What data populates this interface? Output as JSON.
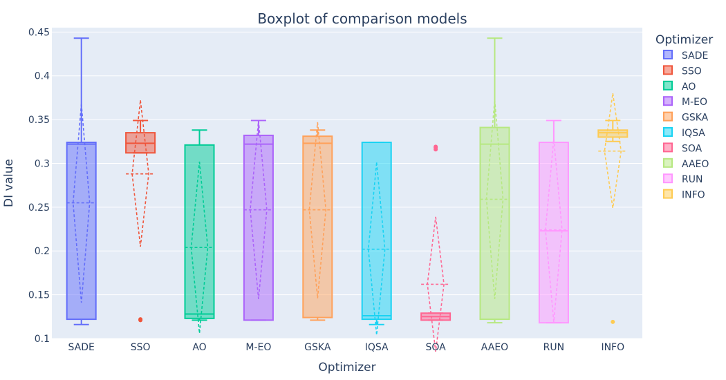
{
  "chart_data": {
    "type": "box",
    "title": "Boxplot of comparison models",
    "xlabel": "Optimizer",
    "ylabel": "DI value",
    "ylim": [
      0.1,
      0.455
    ],
    "yticks": [
      0.1,
      0.15,
      0.2,
      0.25,
      0.3,
      0.35,
      0.4,
      0.45
    ],
    "ytick_labels": [
      "0.1",
      "0.15",
      "0.2",
      "0.25",
      "0.3",
      "0.35",
      "0.4",
      "0.45"
    ],
    "grid": true,
    "legend": {
      "title": "Optimizer",
      "placement": "right"
    },
    "colors": {
      "plot_bg": "#e5ecf6",
      "grid": "#ffffff",
      "text": "#2a3f5f"
    },
    "series": [
      {
        "name": "SADE",
        "color": "#636efa",
        "q1": 0.122,
        "median": 0.322,
        "q3": 0.324,
        "lower_fence": 0.116,
        "upper_fence": 0.443,
        "mean": 0.255,
        "sd_low": 0.141,
        "sd_high": 0.368,
        "outliers": []
      },
      {
        "name": "SSO",
        "color": "#ef553b",
        "q1": 0.312,
        "median": 0.323,
        "q3": 0.335,
        "lower_fence": 0.312,
        "upper_fence": 0.349,
        "mean": 0.288,
        "sd_low": 0.205,
        "sd_high": 0.372,
        "outliers": [
          0.122,
          0.121
        ]
      },
      {
        "name": "AO",
        "color": "#00cc96",
        "q1": 0.123,
        "median": 0.128,
        "q3": 0.321,
        "lower_fence": 0.121,
        "upper_fence": 0.338,
        "mean": 0.204,
        "sd_low": 0.106,
        "sd_high": 0.302,
        "outliers": []
      },
      {
        "name": "M-EO",
        "color": "#ab63fa",
        "q1": 0.121,
        "median": 0.322,
        "q3": 0.332,
        "lower_fence": 0.121,
        "upper_fence": 0.349,
        "mean": 0.247,
        "sd_low": 0.145,
        "sd_high": 0.349,
        "outliers": []
      },
      {
        "name": "GSKA",
        "color": "#ffa15a",
        "q1": 0.124,
        "median": 0.323,
        "q3": 0.331,
        "lower_fence": 0.121,
        "upper_fence": 0.338,
        "mean": 0.247,
        "sd_low": 0.146,
        "sd_high": 0.347,
        "outliers": []
      },
      {
        "name": "IQSA",
        "color": "#19d3f3",
        "q1": 0.122,
        "median": 0.126,
        "q3": 0.324,
        "lower_fence": 0.116,
        "upper_fence": 0.324,
        "mean": 0.202,
        "sd_low": 0.104,
        "sd_high": 0.301,
        "outliers": []
      },
      {
        "name": "SOA",
        "color": "#ff6692",
        "q1": 0.121,
        "median": 0.125,
        "q3": 0.129,
        "lower_fence": 0.121,
        "upper_fence": 0.129,
        "mean": 0.162,
        "sd_low": 0.085,
        "sd_high": 0.239,
        "outliers": [
          0.316,
          0.318,
          0.319
        ]
      },
      {
        "name": "AAEO",
        "color": "#b6e880",
        "q1": 0.122,
        "median": 0.322,
        "q3": 0.341,
        "lower_fence": 0.118,
        "upper_fence": 0.443,
        "mean": 0.259,
        "sd_low": 0.145,
        "sd_high": 0.373,
        "outliers": []
      },
      {
        "name": "RUN",
        "color": "#ff97ff",
        "q1": 0.118,
        "median": 0.223,
        "q3": 0.324,
        "lower_fence": 0.118,
        "upper_fence": 0.349,
        "mean": 0.224,
        "sd_low": 0.119,
        "sd_high": 0.328,
        "outliers": []
      },
      {
        "name": "INFO",
        "color": "#fecb52",
        "q1": 0.33,
        "median": 0.335,
        "q3": 0.338,
        "lower_fence": 0.325,
        "upper_fence": 0.349,
        "mean": 0.314,
        "sd_low": 0.249,
        "sd_high": 0.38,
        "outliers": [
          0.119
        ]
      }
    ]
  }
}
